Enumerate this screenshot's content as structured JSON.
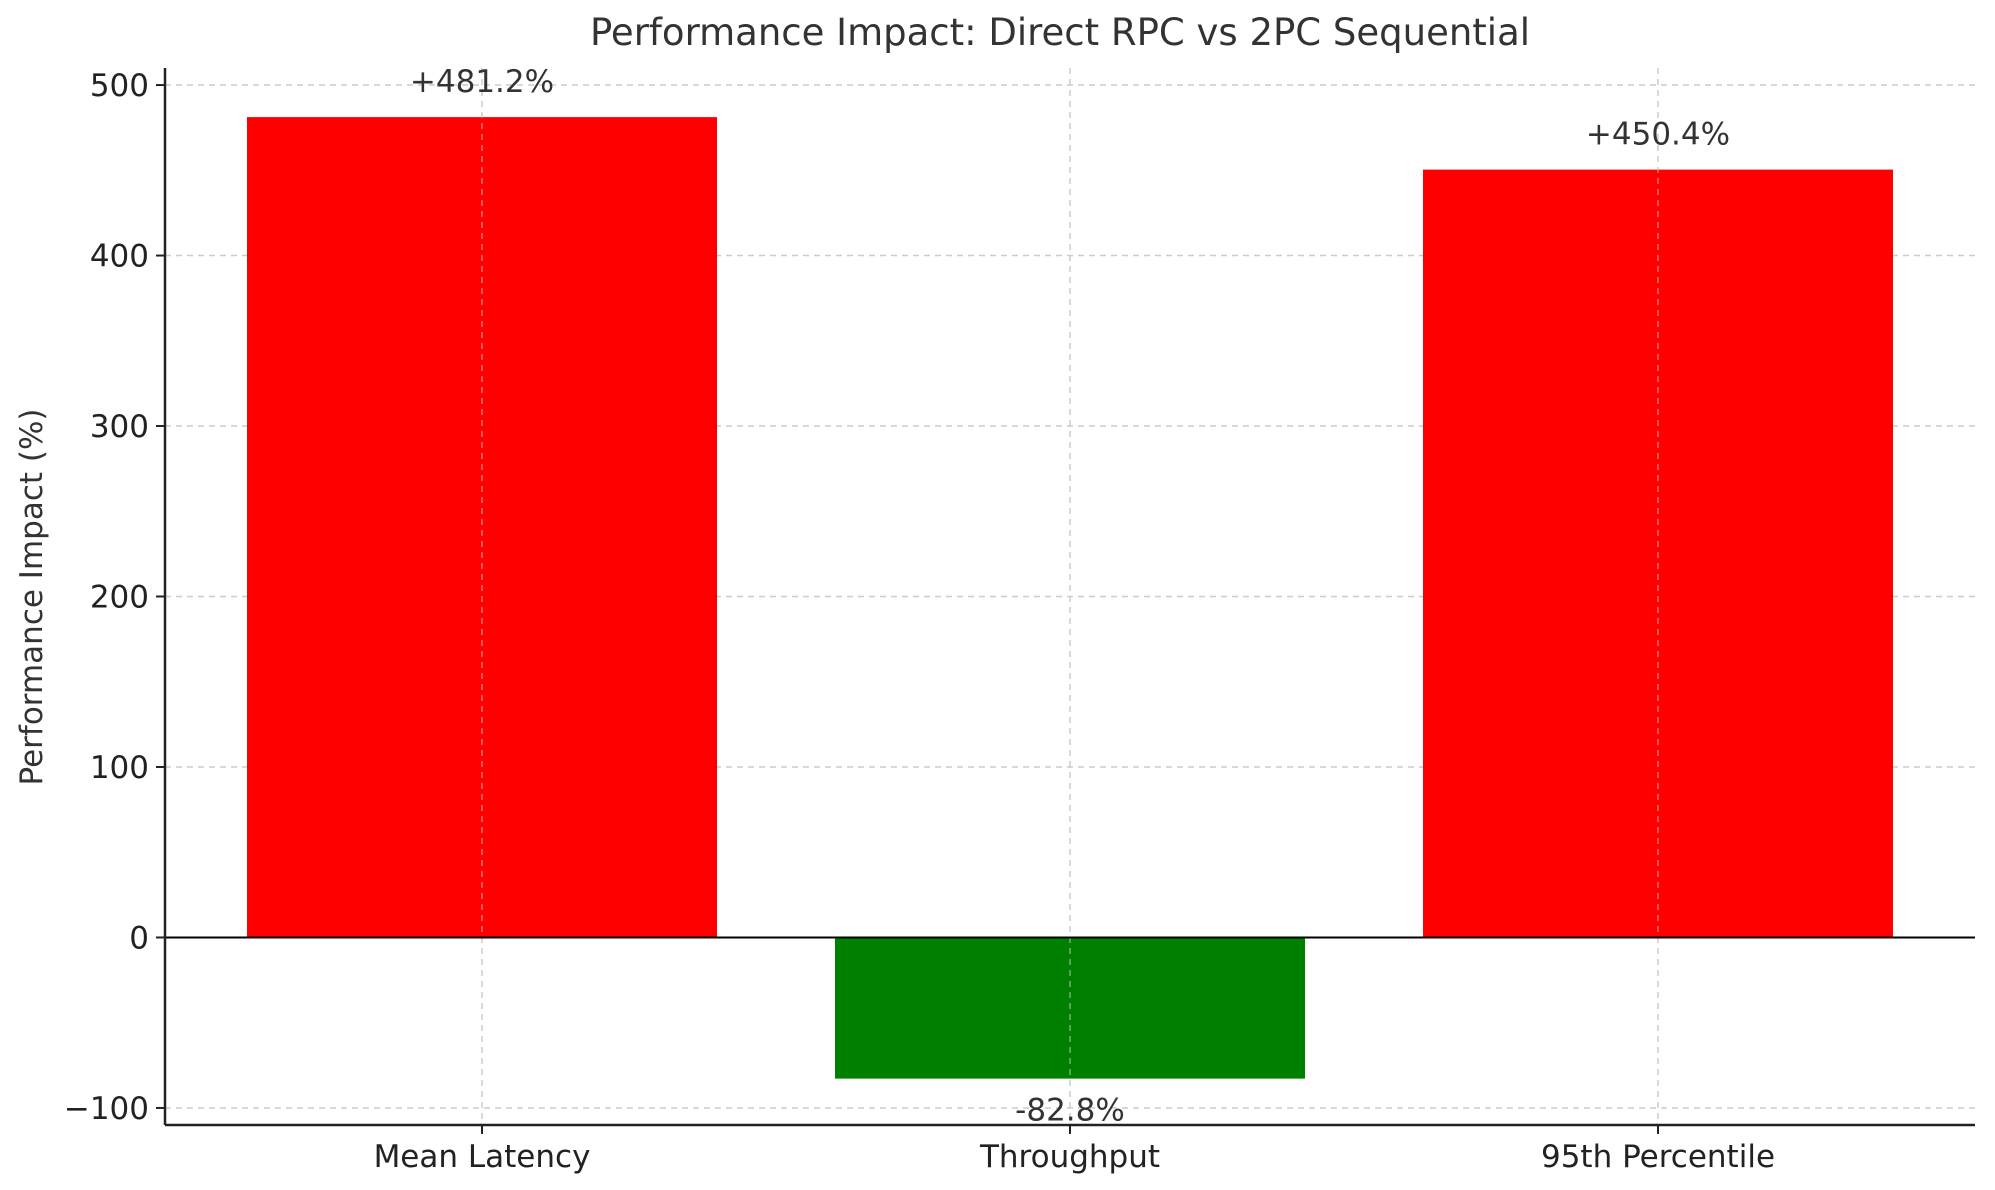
{
  "chart_data": {
    "type": "bar",
    "title": "Performance Impact: Direct RPC vs 2PC Sequential",
    "xlabel": "",
    "ylabel": "Performance Impact (%)",
    "categories": [
      "Mean Latency",
      "Throughput",
      "95th Percentile"
    ],
    "values": [
      481.2,
      -82.8,
      450.4
    ],
    "data_labels": [
      "+481.2%",
      "-82.8%",
      "+450.4%"
    ],
    "bar_colors": [
      "#ff0000",
      "#008000",
      "#ff0000"
    ],
    "ylim": [
      -110,
      510
    ],
    "yticks": [
      -100,
      0,
      100,
      200,
      300,
      400,
      500
    ],
    "ytick_labels": [
      "−100",
      "0",
      "100",
      "200",
      "300",
      "400",
      "500"
    ],
    "grid": true,
    "zero_line": true,
    "legend": "none"
  }
}
